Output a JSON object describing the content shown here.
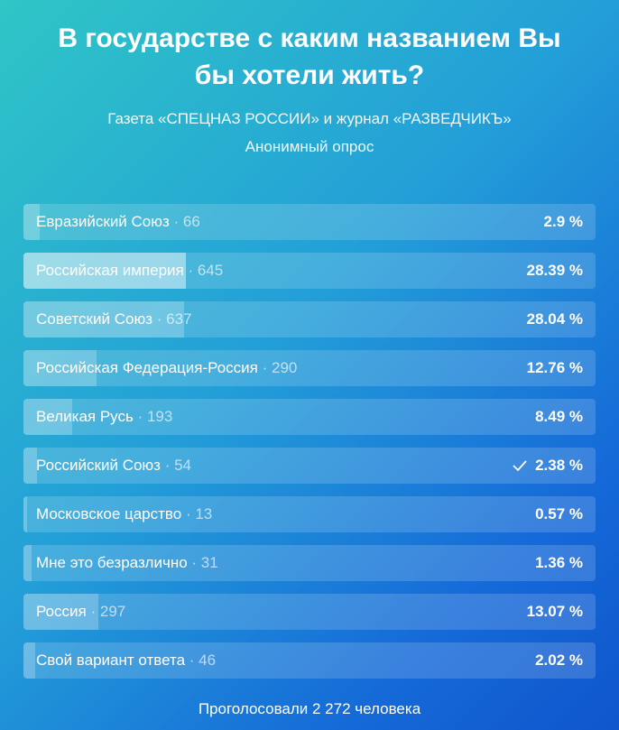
{
  "title": "В государстве с каким названием Вы бы хотели жить?",
  "subtitle": "Газета «СПЕЦНАЗ РОССИИ» и журнал «РАЗВЕДЧИКЪ»",
  "poll_type": "Анонимный опрос",
  "options": [
    {
      "label": "Евразийский Союз",
      "count": 66,
      "percent": 2.9,
      "percent_label": "2.9 %"
    },
    {
      "label": "Российская империя",
      "count": 645,
      "percent": 28.39,
      "percent_label": "28.39 %"
    },
    {
      "label": "Советский Союз",
      "count": 637,
      "percent": 28.04,
      "percent_label": "28.04 %"
    },
    {
      "label": "Российская Федерация-Россия",
      "count": 290,
      "percent": 12.76,
      "percent_label": "12.76 %"
    },
    {
      "label": "Великая Русь",
      "count": 193,
      "percent": 8.49,
      "percent_label": "8.49 %"
    },
    {
      "label": "Российский Союз",
      "count": 54,
      "percent": 2.38,
      "percent_label": "2.38 %",
      "voted": true
    },
    {
      "label": "Московское царство",
      "count": 13,
      "percent": 0.57,
      "percent_label": "0.57 %"
    },
    {
      "label": "Мне это безразлично",
      "count": 31,
      "percent": 1.36,
      "percent_label": "1.36 %"
    },
    {
      "label": "Россия",
      "count": 297,
      "percent": 13.07,
      "percent_label": "13.07 %"
    },
    {
      "label": "Свой вариант ответа",
      "count": 46,
      "percent": 2.02,
      "percent_label": "2.02 %"
    }
  ],
  "footer": "Проголосовали 2 272 человека"
}
